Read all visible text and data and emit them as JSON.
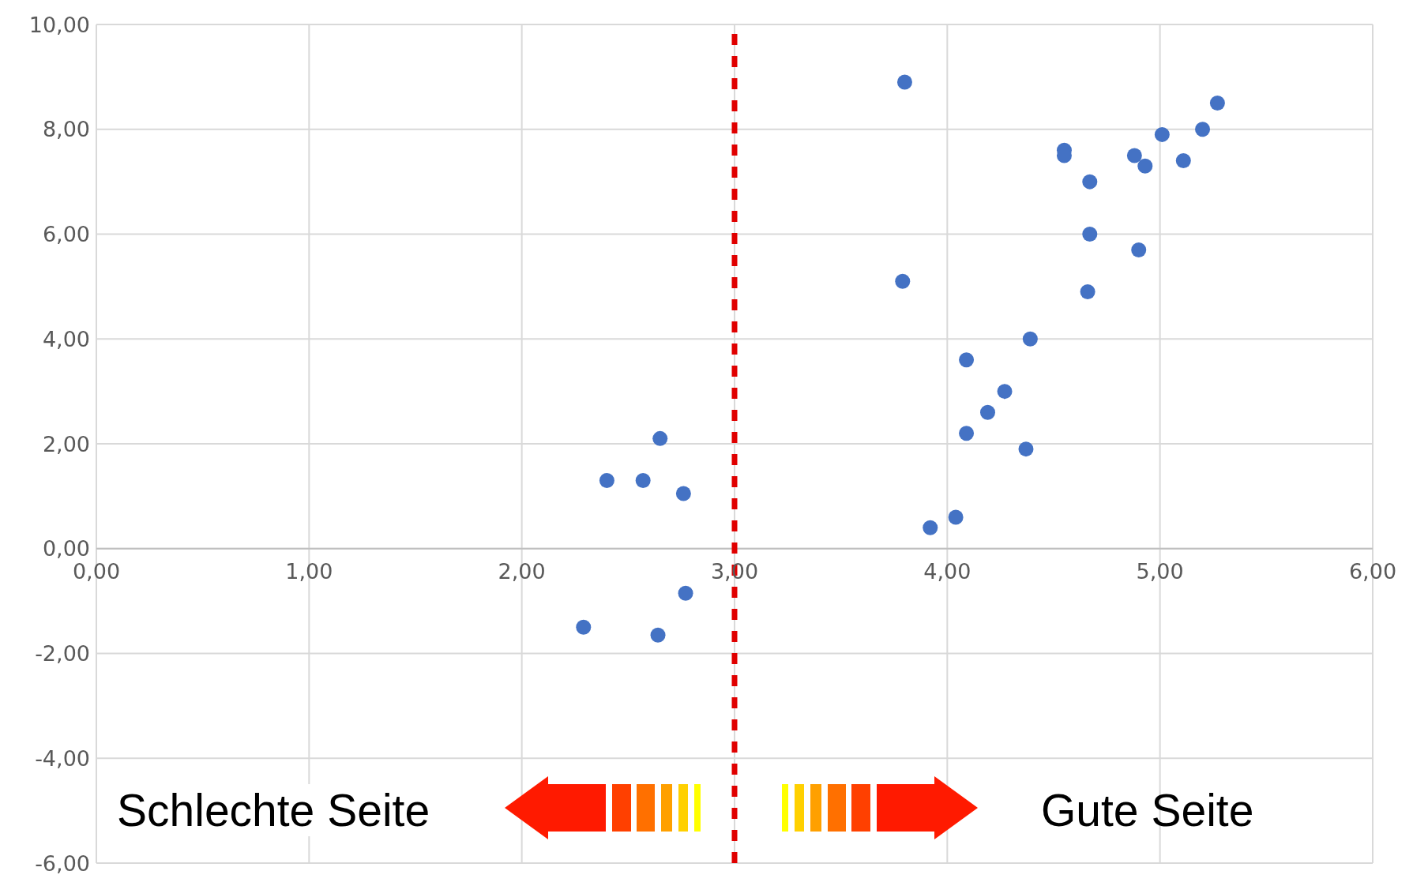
{
  "chart_data": {
    "type": "scatter",
    "series": [
      {
        "color": "#4472c4",
        "x": [
          3.8,
          5.27,
          5.01,
          5.2,
          4.55,
          4.55,
          4.88,
          4.93,
          5.11,
          4.67,
          4.67,
          4.9,
          3.79,
          4.66,
          4.39,
          4.09,
          4.27,
          4.19,
          4.09,
          4.37,
          4.04,
          3.92,
          2.65,
          2.4,
          2.57,
          2.76,
          2.77,
          2.29,
          2.64
        ],
        "values": [
          8.9,
          8.5,
          7.9,
          8.0,
          7.6,
          7.5,
          7.5,
          7.3,
          7.4,
          7.0,
          6.0,
          5.7,
          5.1,
          4.9,
          4.0,
          3.6,
          3.0,
          2.6,
          2.2,
          1.9,
          0.6,
          0.4,
          2.1,
          1.3,
          1.3,
          1.05,
          -0.85,
          -1.5,
          -1.65
        ]
      }
    ],
    "xlim": [
      0,
      6
    ],
    "xticks": [
      {
        "value": 0,
        "label": "0,00"
      },
      {
        "value": 1,
        "label": "1,00"
      },
      {
        "value": 2,
        "label": "2,00"
      },
      {
        "value": 3,
        "label": "3,00"
      },
      {
        "value": 4,
        "label": "4,00"
      },
      {
        "value": 5,
        "label": "5,00"
      },
      {
        "value": 6,
        "label": "6,00"
      }
    ],
    "ylim": [
      -6,
      10
    ],
    "yticks": [
      {
        "value": -6,
        "label": "-6,00"
      },
      {
        "value": -4,
        "label": "-4,00"
      },
      {
        "value": -2,
        "label": "-2,00"
      },
      {
        "value": 0,
        "label": "0,00"
      },
      {
        "value": 2,
        "label": "2,00"
      },
      {
        "value": 4,
        "label": "4,00"
      },
      {
        "value": 6,
        "label": "6,00"
      },
      {
        "value": 8,
        "label": "8,00"
      },
      {
        "value": 10,
        "label": "10,00"
      }
    ],
    "ref_lines": [
      {
        "axis": "x",
        "value": 3,
        "color": "#e00000",
        "line_style": "dashed"
      }
    ],
    "annotations": [
      "Schlechte Seite",
      "Gute Seite"
    ],
    "grid": true,
    "legend": false,
    "marker": "circle"
  }
}
